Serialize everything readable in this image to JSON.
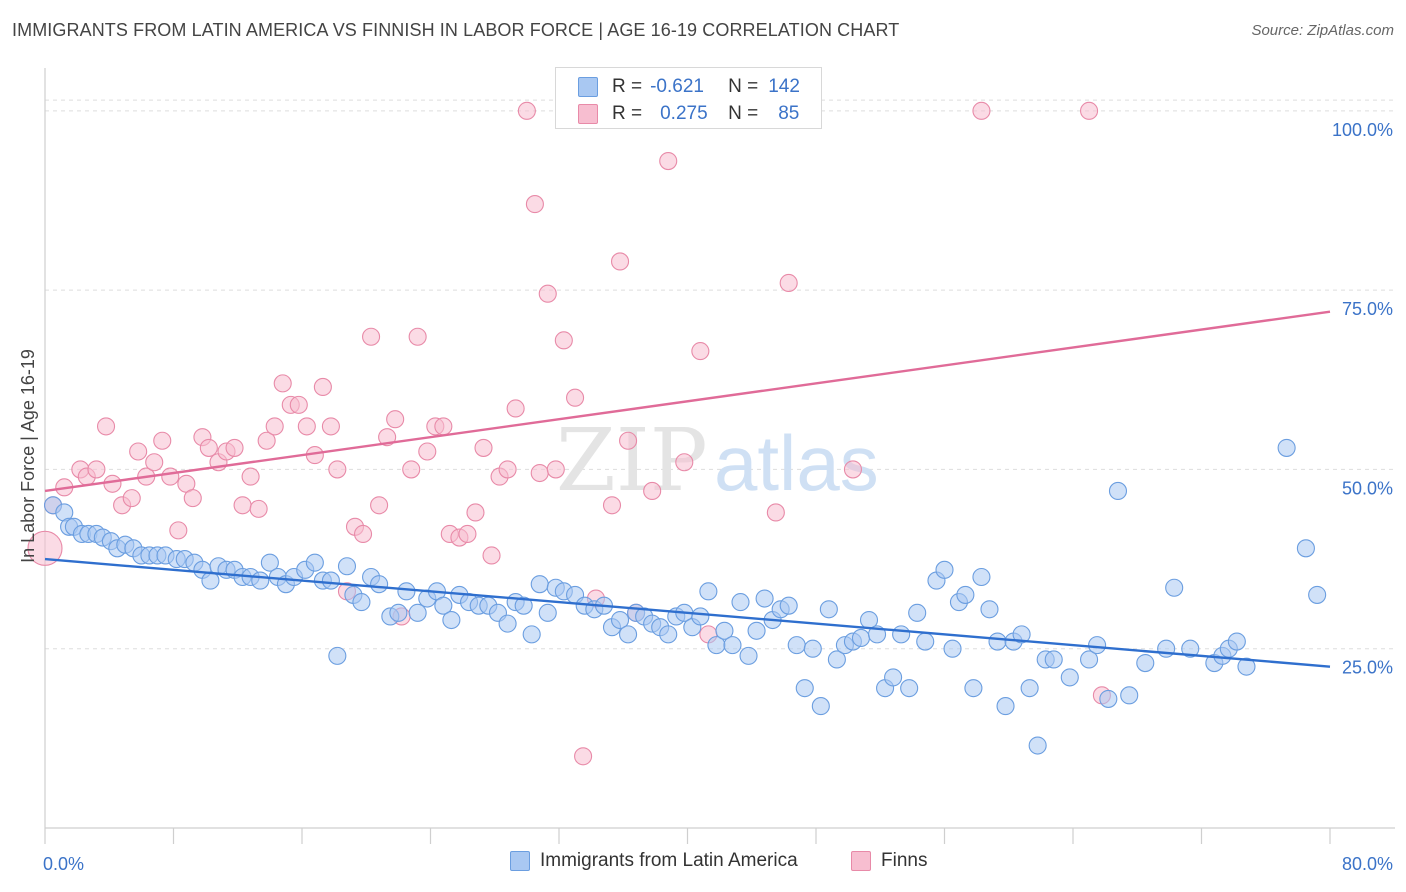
{
  "title": "IMMIGRANTS FROM LATIN AMERICA VS FINNISH IN LABOR FORCE | AGE 16-19 CORRELATION CHART",
  "source": "Source: ZipAtlas.com",
  "watermark": {
    "part1": "ZIP",
    "part2": "atlas"
  },
  "colors": {
    "blue_fill": "#a9c8f2",
    "blue_stroke": "#6b9ee0",
    "blue_line": "#2f6fce",
    "pink_fill": "#f7bed0",
    "pink_stroke": "#e88aa8",
    "pink_line": "#e06b98",
    "tick_text": "#3b73c8",
    "grid": "#dddddd"
  },
  "legend": {
    "rows": [
      {
        "r_label": "R =",
        "r_value": "-0.621",
        "n_label": "N =",
        "n_value": "142"
      },
      {
        "r_label": "R =",
        "r_value": "0.275",
        "n_label": "N =",
        "n_value": "85"
      }
    ]
  },
  "bottom_legend": [
    "Immigrants from Latin America",
    "Finns"
  ],
  "chart_data": {
    "type": "scatter",
    "title": "IMMIGRANTS FROM LATIN AMERICA VS FINNISH IN LABOR FORCE | AGE 16-19 CORRELATION CHART",
    "xlabel": "",
    "ylabel": "In Labor Force | Age 16-19",
    "xlim": [
      0,
      80
    ],
    "ylim": [
      0,
      105
    ],
    "x_tick_labels": [
      "0.0%",
      "80.0%"
    ],
    "y_ticks": [
      25,
      50,
      75,
      100
    ],
    "y_tick_labels": [
      "25.0%",
      "50.0%",
      "75.0%",
      "100.0%"
    ],
    "grid": true,
    "legend_position": "top-center",
    "series": [
      {
        "name": "Immigrants from Latin America",
        "color": "#a9c8f2",
        "R": -0.621,
        "N": 142,
        "trend": {
          "x": [
            0,
            80
          ],
          "y": [
            37.5,
            22.5
          ]
        },
        "points": [
          [
            0.5,
            45
          ],
          [
            1.2,
            44
          ],
          [
            1.5,
            42
          ],
          [
            1.8,
            42
          ],
          [
            2.3,
            41
          ],
          [
            2.7,
            41
          ],
          [
            3.2,
            41
          ],
          [
            3.6,
            40.5
          ],
          [
            4.1,
            40
          ],
          [
            4.5,
            39
          ],
          [
            5,
            39.5
          ],
          [
            5.5,
            39
          ],
          [
            6,
            38
          ],
          [
            6.5,
            38
          ],
          [
            7,
            38
          ],
          [
            7.5,
            38
          ],
          [
            8.2,
            37.5
          ],
          [
            8.7,
            37.5
          ],
          [
            9.3,
            37
          ],
          [
            9.8,
            36
          ],
          [
            10.3,
            34.5
          ],
          [
            10.8,
            36.5
          ],
          [
            11.3,
            36
          ],
          [
            11.8,
            36
          ],
          [
            12.3,
            35
          ],
          [
            12.8,
            35
          ],
          [
            13.4,
            34.5
          ],
          [
            14,
            37
          ],
          [
            14.5,
            35
          ],
          [
            15,
            34
          ],
          [
            15.5,
            35
          ],
          [
            16.2,
            36
          ],
          [
            16.8,
            37
          ],
          [
            17.3,
            34.5
          ],
          [
            17.8,
            34.5
          ],
          [
            18.2,
            24
          ],
          [
            18.8,
            36.5
          ],
          [
            19.2,
            32.5
          ],
          [
            19.7,
            31.5
          ],
          [
            20.3,
            35
          ],
          [
            20.8,
            34
          ],
          [
            21.5,
            29.5
          ],
          [
            22,
            30
          ],
          [
            22.5,
            33
          ],
          [
            23.2,
            30
          ],
          [
            23.8,
            32
          ],
          [
            24.4,
            33
          ],
          [
            24.8,
            31
          ],
          [
            25.3,
            29
          ],
          [
            25.8,
            32.5
          ],
          [
            26.4,
            31.5
          ],
          [
            27,
            31
          ],
          [
            27.6,
            31
          ],
          [
            28.2,
            30
          ],
          [
            28.8,
            28.5
          ],
          [
            29.3,
            31.5
          ],
          [
            29.8,
            31
          ],
          [
            30.3,
            27
          ],
          [
            30.8,
            34
          ],
          [
            31.3,
            30
          ],
          [
            31.8,
            33.5
          ],
          [
            32.3,
            33
          ],
          [
            33,
            32.5
          ],
          [
            33.6,
            31
          ],
          [
            34.2,
            30.5
          ],
          [
            34.8,
            31
          ],
          [
            35.3,
            28
          ],
          [
            35.8,
            29
          ],
          [
            36.3,
            27
          ],
          [
            36.8,
            30
          ],
          [
            37.3,
            29.5
          ],
          [
            37.8,
            28.5
          ],
          [
            38.3,
            28
          ],
          [
            38.8,
            27
          ],
          [
            39.3,
            29.5
          ],
          [
            39.8,
            30
          ],
          [
            40.3,
            28
          ],
          [
            40.8,
            29.5
          ],
          [
            41.3,
            33
          ],
          [
            41.8,
            25.5
          ],
          [
            42.3,
            27.5
          ],
          [
            42.8,
            25.5
          ],
          [
            43.3,
            31.5
          ],
          [
            43.8,
            24
          ],
          [
            44.3,
            27.5
          ],
          [
            44.8,
            32
          ],
          [
            45.3,
            29
          ],
          [
            45.8,
            30.5
          ],
          [
            46.3,
            31
          ],
          [
            46.8,
            25.5
          ],
          [
            47.3,
            19.5
          ],
          [
            47.8,
            25
          ],
          [
            48.3,
            17
          ],
          [
            48.8,
            30.5
          ],
          [
            49.3,
            23.5
          ],
          [
            49.8,
            25.5
          ],
          [
            50.3,
            26
          ],
          [
            50.8,
            26.5
          ],
          [
            51.3,
            29
          ],
          [
            51.8,
            27
          ],
          [
            52.3,
            19.5
          ],
          [
            52.8,
            21
          ],
          [
            53.3,
            27
          ],
          [
            53.8,
            19.5
          ],
          [
            54.3,
            30
          ],
          [
            54.8,
            26
          ],
          [
            55.5,
            34.5
          ],
          [
            56,
            36
          ],
          [
            56.5,
            25
          ],
          [
            56.9,
            31.5
          ],
          [
            57.3,
            32.5
          ],
          [
            57.8,
            19.5
          ],
          [
            58.3,
            35
          ],
          [
            58.8,
            30.5
          ],
          [
            59.3,
            26
          ],
          [
            59.8,
            17
          ],
          [
            60.3,
            26
          ],
          [
            60.8,
            27
          ],
          [
            61.3,
            19.5
          ],
          [
            61.8,
            11.5
          ],
          [
            62.3,
            23.5
          ],
          [
            62.8,
            23.5
          ],
          [
            63.8,
            21
          ],
          [
            65,
            23.5
          ],
          [
            65.5,
            25.5
          ],
          [
            66.2,
            18
          ],
          [
            66.8,
            47
          ],
          [
            67.5,
            18.5
          ],
          [
            68.5,
            23
          ],
          [
            69.8,
            25
          ],
          [
            70.3,
            33.5
          ],
          [
            71.3,
            25
          ],
          [
            72.8,
            23
          ],
          [
            73.3,
            24
          ],
          [
            73.7,
            25
          ],
          [
            74.2,
            26
          ],
          [
            74.8,
            22.5
          ],
          [
            77.3,
            53
          ],
          [
            78.5,
            39
          ],
          [
            79.2,
            32.5
          ]
        ]
      },
      {
        "name": "Finns",
        "color": "#f7bed0",
        "R": 0.275,
        "N": 85,
        "trend": {
          "x": [
            0,
            80
          ],
          "y": [
            47,
            72
          ]
        },
        "points": [
          [
            0,
            39
          ],
          [
            0.5,
            45
          ],
          [
            1.2,
            47.5
          ],
          [
            2.2,
            50
          ],
          [
            2.6,
            49
          ],
          [
            3.2,
            50
          ],
          [
            3.8,
            56
          ],
          [
            4.2,
            48
          ],
          [
            4.8,
            45
          ],
          [
            5.4,
            46
          ],
          [
            5.8,
            52.5
          ],
          [
            6.3,
            49
          ],
          [
            6.8,
            51
          ],
          [
            7.3,
            54
          ],
          [
            7.8,
            49
          ],
          [
            8.3,
            41.5
          ],
          [
            8.8,
            48
          ],
          [
            9.2,
            46
          ],
          [
            9.8,
            54.5
          ],
          [
            10.2,
            53
          ],
          [
            10.8,
            51
          ],
          [
            11.3,
            52.5
          ],
          [
            11.8,
            53
          ],
          [
            12.3,
            45
          ],
          [
            12.8,
            49
          ],
          [
            13.3,
            44.5
          ],
          [
            13.8,
            54
          ],
          [
            14.3,
            56
          ],
          [
            14.8,
            62
          ],
          [
            15.3,
            59
          ],
          [
            15.8,
            59
          ],
          [
            16.3,
            56
          ],
          [
            16.8,
            52
          ],
          [
            17.3,
            61.5
          ],
          [
            17.8,
            56
          ],
          [
            18.2,
            50
          ],
          [
            18.8,
            33
          ],
          [
            19.3,
            42
          ],
          [
            19.8,
            41
          ],
          [
            20.3,
            68.5
          ],
          [
            20.8,
            45
          ],
          [
            21.3,
            54.5
          ],
          [
            21.8,
            57
          ],
          [
            22.2,
            29.5
          ],
          [
            22.8,
            50
          ],
          [
            23.2,
            68.5
          ],
          [
            23.8,
            52.5
          ],
          [
            24.3,
            56
          ],
          [
            24.8,
            56
          ],
          [
            25.2,
            41
          ],
          [
            25.8,
            40.5
          ],
          [
            26.3,
            41
          ],
          [
            26.8,
            44
          ],
          [
            27.3,
            53
          ],
          [
            27.8,
            38
          ],
          [
            28.3,
            49
          ],
          [
            28.8,
            50
          ],
          [
            29.3,
            58.5
          ],
          [
            30,
            100
          ],
          [
            30.5,
            87
          ],
          [
            30.8,
            49.5
          ],
          [
            31.3,
            74.5
          ],
          [
            31.8,
            50
          ],
          [
            32.3,
            68
          ],
          [
            33,
            60
          ],
          [
            33.5,
            10
          ],
          [
            34.3,
            32
          ],
          [
            35,
            100
          ],
          [
            35.3,
            45
          ],
          [
            35.8,
            79
          ],
          [
            36.3,
            54
          ],
          [
            36.8,
            30
          ],
          [
            37.8,
            47
          ],
          [
            38.8,
            93
          ],
          [
            39.8,
            51
          ],
          [
            40.8,
            66.5
          ],
          [
            41.3,
            27
          ],
          [
            45.5,
            44
          ],
          [
            46.3,
            76
          ],
          [
            50.3,
            50
          ],
          [
            58.3,
            100
          ],
          [
            65,
            100
          ],
          [
            65.8,
            18.5
          ]
        ]
      }
    ]
  }
}
